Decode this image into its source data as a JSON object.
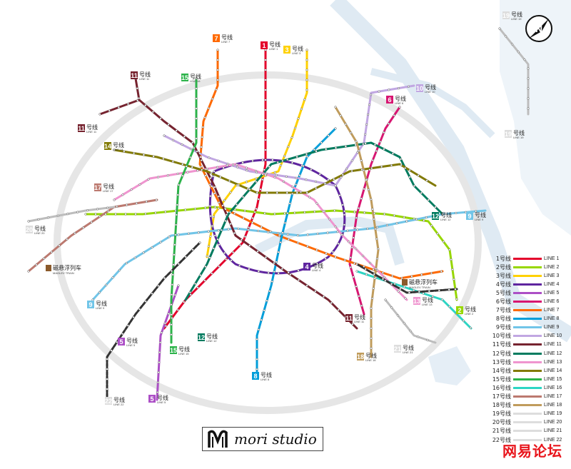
{
  "lines": [
    {
      "cn": "1号线",
      "en": "LINE 1",
      "color": "#e4002b"
    },
    {
      "cn": "2号线",
      "en": "LINE 2",
      "color": "#97d700"
    },
    {
      "cn": "3号线",
      "en": "LINE 3",
      "color": "#ffd100"
    },
    {
      "cn": "4号线",
      "en": "LINE 4",
      "color": "#5f259f"
    },
    {
      "cn": "5号线",
      "en": "LINE 5",
      "color": "#ac4fc6"
    },
    {
      "cn": "6号线",
      "en": "LINE 6",
      "color": "#d71671"
    },
    {
      "cn": "7号线",
      "en": "LINE 7",
      "color": "#ff6900"
    },
    {
      "cn": "8号线",
      "en": "LINE 8",
      "color": "#009eda"
    },
    {
      "cn": "9号线",
      "en": "LINE 9",
      "color": "#71c5e8"
    },
    {
      "cn": "10号线",
      "en": "LINE 10",
      "color": "#c1a7e2"
    },
    {
      "cn": "11号线",
      "en": "LINE 11",
      "color": "#76232f"
    },
    {
      "cn": "12号线",
      "en": "LINE 12",
      "color": "#007b5f"
    },
    {
      "cn": "13号线",
      "en": "LINE 13",
      "color": "#ef95cf"
    },
    {
      "cn": "14号线",
      "en": "LINE 14",
      "color": "#827a04"
    },
    {
      "cn": "15号线",
      "en": "LINE 15",
      "color": "#2cb34a"
    },
    {
      "cn": "16号线",
      "en": "LINE 16",
      "color": "#2cd5c4"
    },
    {
      "cn": "17号线",
      "en": "LINE 17",
      "color": "#bc796f"
    },
    {
      "cn": "18号线",
      "en": "LINE 18",
      "color": "#c09c5c"
    },
    {
      "cn": "19号线",
      "en": "LINE 19",
      "color": "#dddddd"
    },
    {
      "cn": "20号线",
      "en": "LINE 20",
      "color": "#dddddd"
    },
    {
      "cn": "21号线",
      "en": "LINE 21",
      "color": "#dddddd"
    },
    {
      "cn": "22号线",
      "en": "LINE 22",
      "color": "#dddddd"
    }
  ],
  "tags": [
    {
      "num": "7",
      "cn": "号线",
      "en": "LINE 7",
      "color": "#ff6900"
    },
    {
      "num": "1",
      "cn": "号线",
      "en": "LINE 1",
      "color": "#e4002b"
    },
    {
      "num": "3",
      "cn": "号线",
      "en": "LINE 3",
      "color": "#ffd100"
    },
    {
      "num": "11",
      "cn": "号线",
      "en": "LINE 11",
      "color": "#76232f"
    },
    {
      "num": "15",
      "cn": "号线",
      "en": "LINE 15",
      "color": "#2cb34a"
    },
    {
      "num": "11",
      "cn": "号线",
      "en": "LINE 11",
      "color": "#76232f"
    },
    {
      "num": "14",
      "cn": "号线",
      "en": "LINE 14",
      "color": "#827a04"
    },
    {
      "num": "17",
      "cn": "号线",
      "en": "LINE 17",
      "color": "#bc796f"
    },
    {
      "num": "20",
      "cn": "号线",
      "en": "LINE 20",
      "color": "#dddddd"
    },
    {
      "num": "9",
      "cn": "号线",
      "en": "LINE 9",
      "color": "#71c5e8"
    },
    {
      "num": "5",
      "cn": "号线",
      "en": "LINE 5",
      "color": "#ac4fc6"
    },
    {
      "num": "22",
      "cn": "号线",
      "en": "LINE 22",
      "color": "#dddddd"
    },
    {
      "num": "5",
      "cn": "号线",
      "en": "LINE 5",
      "color": "#ac4fc6"
    },
    {
      "num": "15",
      "cn": "号线",
      "en": "LINE 15",
      "color": "#2cb34a"
    },
    {
      "num": "12",
      "cn": "号线",
      "en": "LINE 12",
      "color": "#007b5f"
    },
    {
      "num": "8",
      "cn": "号线",
      "en": "LINE 8",
      "color": "#009eda"
    },
    {
      "num": "4",
      "cn": "号线",
      "en": "LINE 4",
      "color": "#5f259f"
    },
    {
      "num": "11",
      "cn": "号线",
      "en": "LINE 11",
      "color": "#76232f"
    },
    {
      "num": "18",
      "cn": "号线",
      "en": "LINE 18",
      "color": "#c09c5c"
    },
    {
      "num": "10",
      "cn": "号线",
      "en": "LINE 10",
      "color": "#c1a7e2"
    },
    {
      "num": "6",
      "cn": "号线",
      "en": "LINE 6",
      "color": "#d71671"
    },
    {
      "num": "19",
      "cn": "号线",
      "en": "LINE 19",
      "color": "#dddddd"
    },
    {
      "num": "12",
      "cn": "号线",
      "en": "LINE 12",
      "color": "#007b5f"
    },
    {
      "num": "9",
      "cn": "号线",
      "en": "LINE 9",
      "color": "#71c5e8"
    },
    {
      "num": "13",
      "cn": "号线",
      "en": "LINE 13",
      "color": "#ef95cf"
    },
    {
      "num": "2",
      "cn": "号线",
      "en": "LINE 2",
      "color": "#97d700"
    },
    {
      "num": "21",
      "cn": "号线",
      "en": "LINE 21",
      "color": "#dddddd"
    },
    {
      "num": "19",
      "cn": "号线",
      "en": "LINE 19",
      "color": "#dddddd"
    }
  ],
  "maglev": [
    {
      "cn": "磁悬浮列车",
      "en": "MAGLEV TRAIN"
    },
    {
      "cn": "磁悬浮列车",
      "en": "MAGLEV TRAIN"
    }
  ],
  "brand": {
    "text": "mori studio"
  },
  "watermark": {
    "text": "网易论坛"
  },
  "compass": {
    "letter": "N"
  }
}
